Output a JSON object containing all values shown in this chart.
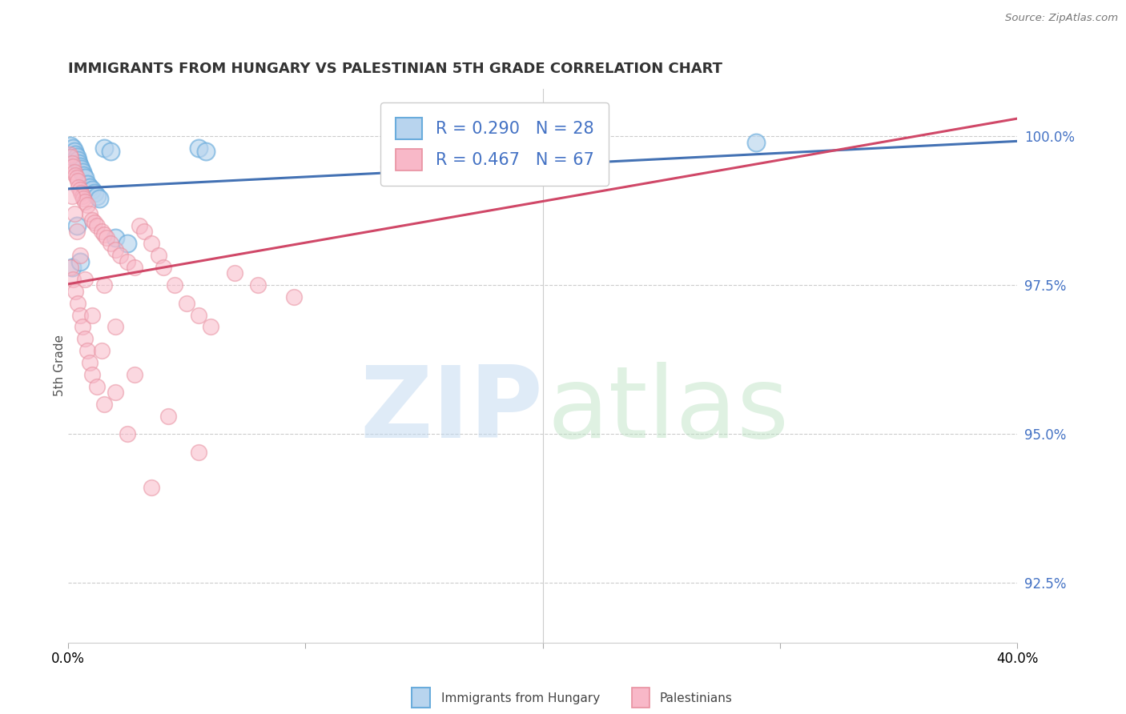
{
  "title": "IMMIGRANTS FROM HUNGARY VS PALESTINIAN 5TH GRADE CORRELATION CHART",
  "source": "Source: ZipAtlas.com",
  "ylabel": "5th Grade",
  "xlim": [
    0.0,
    40.0
  ],
  "ylim": [
    91.5,
    100.8
  ],
  "yticks": [
    92.5,
    95.0,
    97.5,
    100.0
  ],
  "ytick_labels": [
    "92.5%",
    "95.0%",
    "97.5%",
    "100.0%"
  ],
  "hungary_R": 0.29,
  "hungary_N": 28,
  "palestinian_R": 0.467,
  "palestinian_N": 67,
  "hungary_marker_face": "#a8c8e8",
  "hungary_marker_edge": "#6aaSd6",
  "palestinian_marker_face": "#f8b0c0",
  "palestinian_marker_edge": "#e88090",
  "trend_hungary_color": "#4472B4",
  "trend_palestinian_color": "#d04868",
  "hungary_x": [
    0.1,
    0.2,
    0.25,
    0.3,
    0.35,
    0.4,
    0.45,
    0.5,
    0.55,
    0.6,
    0.65,
    0.7,
    0.8,
    0.9,
    1.0,
    1.1,
    1.2,
    1.3,
    1.5,
    1.8,
    2.0,
    2.5,
    5.5,
    5.8,
    0.15,
    0.35,
    0.5,
    29.0
  ],
  "hungary_y": [
    99.85,
    99.8,
    99.75,
    99.7,
    99.65,
    99.6,
    99.55,
    99.5,
    99.45,
    99.4,
    99.35,
    99.3,
    99.2,
    99.15,
    99.1,
    99.05,
    99.0,
    98.95,
    99.8,
    99.75,
    98.3,
    98.2,
    99.8,
    99.75,
    97.8,
    98.5,
    97.9,
    99.9
  ],
  "palestinian_x": [
    0.05,
    0.1,
    0.15,
    0.2,
    0.25,
    0.3,
    0.35,
    0.4,
    0.45,
    0.5,
    0.55,
    0.6,
    0.65,
    0.7,
    0.8,
    0.9,
    1.0,
    1.1,
    1.2,
    1.4,
    1.5,
    1.6,
    1.8,
    2.0,
    2.2,
    2.5,
    2.8,
    3.0,
    3.2,
    3.5,
    3.8,
    4.0,
    4.5,
    5.0,
    5.5,
    6.0,
    7.0,
    8.0,
    9.5,
    0.1,
    0.2,
    0.3,
    0.4,
    0.5,
    0.6,
    0.7,
    0.8,
    0.9,
    1.0,
    1.2,
    1.5,
    0.15,
    0.25,
    0.35,
    0.5,
    0.7,
    1.0,
    1.4,
    2.0,
    2.5,
    3.5,
    1.5,
    2.0,
    2.8,
    4.2,
    5.5,
    13.5
  ],
  "palestinian_y": [
    99.7,
    99.65,
    99.55,
    99.5,
    99.4,
    99.35,
    99.3,
    99.25,
    99.15,
    99.1,
    99.05,
    99.0,
    98.95,
    98.9,
    98.85,
    98.7,
    98.6,
    98.55,
    98.5,
    98.4,
    98.35,
    98.3,
    98.2,
    98.1,
    98.0,
    97.9,
    97.8,
    98.5,
    98.4,
    98.2,
    98.0,
    97.8,
    97.5,
    97.2,
    97.0,
    96.8,
    97.7,
    97.5,
    97.3,
    97.8,
    97.6,
    97.4,
    97.2,
    97.0,
    96.8,
    96.6,
    96.4,
    96.2,
    96.0,
    95.8,
    95.5,
    99.0,
    98.7,
    98.4,
    98.0,
    97.6,
    97.0,
    96.4,
    95.7,
    95.0,
    94.1,
    97.5,
    96.8,
    96.0,
    95.3,
    94.7,
    99.5
  ]
}
